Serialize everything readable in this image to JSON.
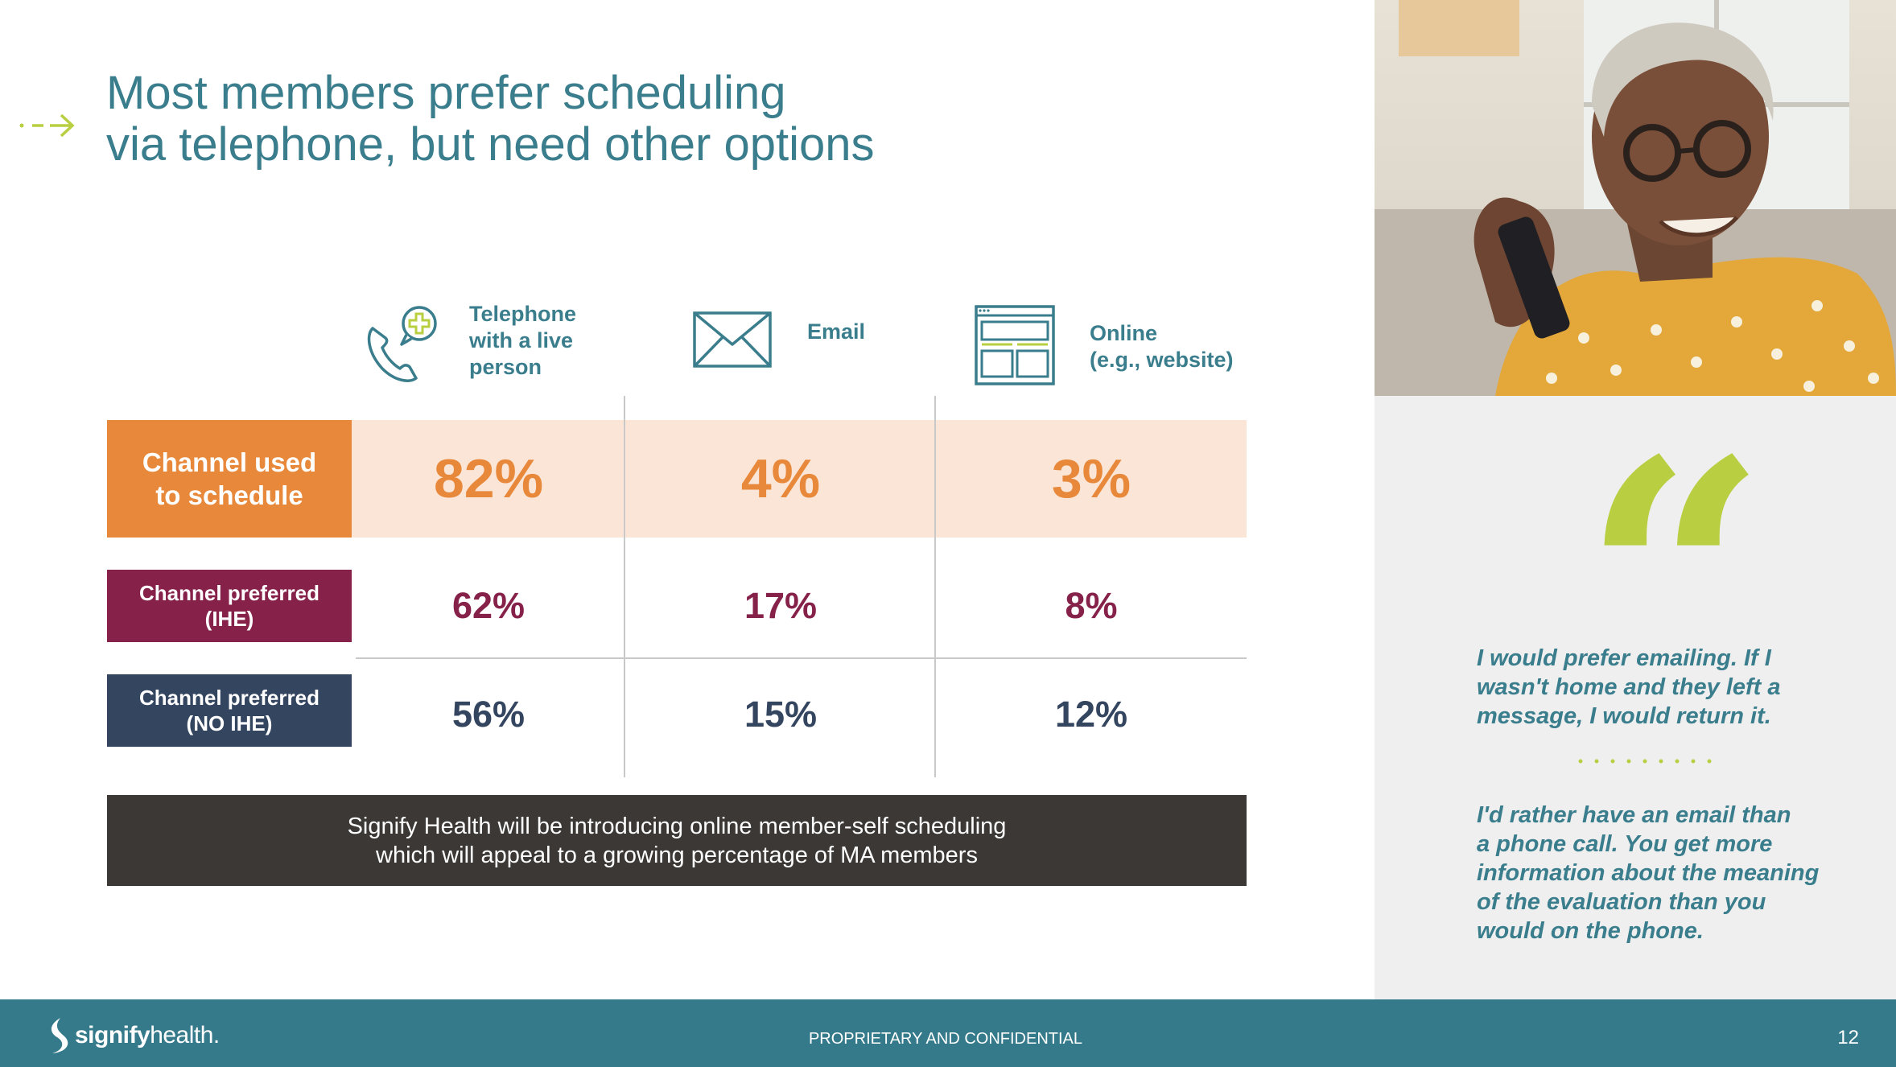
{
  "title": {
    "line1": "Most members prefer scheduling",
    "line2": "via telephone, but need other options"
  },
  "columns": [
    {
      "icon": "phone-medical-icon",
      "label_lines": [
        "Telephone",
        "with a live",
        "person"
      ]
    },
    {
      "icon": "envelope-icon",
      "label_lines": [
        "Email"
      ]
    },
    {
      "icon": "website-icon",
      "label_lines": [
        "Online",
        "(e.g., website)"
      ]
    }
  ],
  "rows": [
    {
      "label_lines": [
        "Channel used",
        "to schedule"
      ],
      "values": [
        "82%",
        "4%",
        "3%"
      ],
      "color": "#e8883a"
    },
    {
      "label_lines": [
        "Channel preferred",
        "(IHE)"
      ],
      "values": [
        "62%",
        "17%",
        "8%"
      ],
      "color": "#86224a"
    },
    {
      "label_lines": [
        "Channel preferred",
        "(NO IHE)"
      ],
      "values": [
        "56%",
        "15%",
        "12%"
      ],
      "color": "#344560"
    }
  ],
  "banner": {
    "line1": "Signify Health will be introducing online member-self scheduling",
    "line2": "which will appeal to a growing percentage of MA members"
  },
  "quotes": [
    {
      "lines": [
        "I would prefer emailing. If I",
        "wasn't home and they left a",
        "message, I would return it."
      ]
    },
    {
      "lines": [
        "I'd rather have an email than",
        "a phone call. You get more",
        "information about the meaning",
        "of the evaluation than you",
        "would on the phone."
      ]
    }
  ],
  "quote_mark": "“",
  "footer": {
    "logo_bold": "signify",
    "logo_light": "health.",
    "confidential": "PROPRIETARY AND CONFIDENTIAL",
    "page_number": "12"
  },
  "colors": {
    "teal": "#3a7d8c",
    "orange": "#e8883a",
    "maroon": "#86224a",
    "navy": "#344560",
    "lime": "#b9cf41"
  }
}
